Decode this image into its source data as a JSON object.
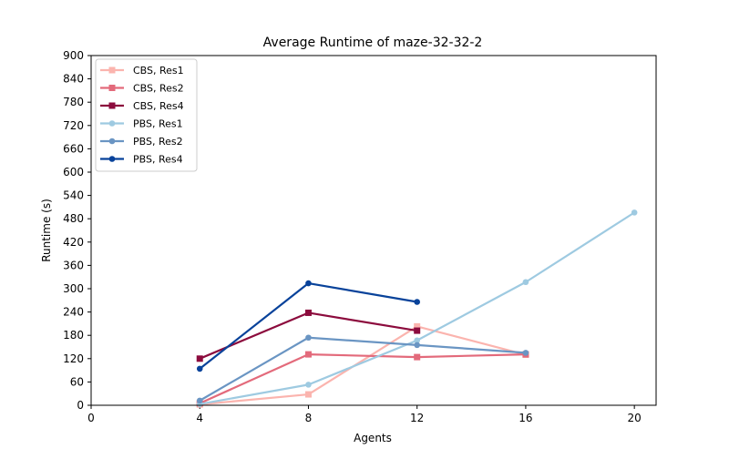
{
  "chart_data": {
    "type": "line",
    "title": "Average Runtime of maze-32-32-2",
    "xlabel": "Agents",
    "ylabel": "Runtime (s)",
    "xlim": [
      0,
      20.8
    ],
    "ylim": [
      0,
      900
    ],
    "xticks": [
      0,
      4,
      8,
      12,
      16,
      20
    ],
    "yticks": [
      0,
      60,
      120,
      180,
      240,
      300,
      360,
      420,
      480,
      540,
      600,
      660,
      720,
      780,
      840,
      900
    ],
    "grid": false,
    "legend_position": "top-left",
    "series": [
      {
        "name": "CBS, Res1",
        "color": "#fbb4ae",
        "marker": "square",
        "x": [
          4,
          8,
          12,
          16
        ],
        "y": [
          2,
          28,
          203,
          130
        ]
      },
      {
        "name": "CBS, Res2",
        "color": "#e36a7b",
        "marker": "square",
        "x": [
          4,
          8,
          12,
          16
        ],
        "y": [
          5,
          131,
          124,
          131
        ]
      },
      {
        "name": "CBS, Res4",
        "color": "#8c0b3d",
        "marker": "square",
        "x": [
          4,
          8,
          12
        ],
        "y": [
          120,
          238,
          192
        ]
      },
      {
        "name": "PBS, Res1",
        "color": "#9ecae1",
        "marker": "circle",
        "x": [
          4,
          8,
          12,
          16,
          20
        ],
        "y": [
          3,
          53,
          167,
          317,
          496
        ]
      },
      {
        "name": "PBS, Res2",
        "color": "#6a95c3",
        "marker": "circle",
        "x": [
          4,
          8,
          12,
          16
        ],
        "y": [
          12,
          174,
          155,
          135
        ]
      },
      {
        "name": "PBS, Res4",
        "color": "#08429a",
        "marker": "circle",
        "x": [
          4,
          8,
          12
        ],
        "y": [
          94,
          314,
          266
        ]
      }
    ]
  }
}
